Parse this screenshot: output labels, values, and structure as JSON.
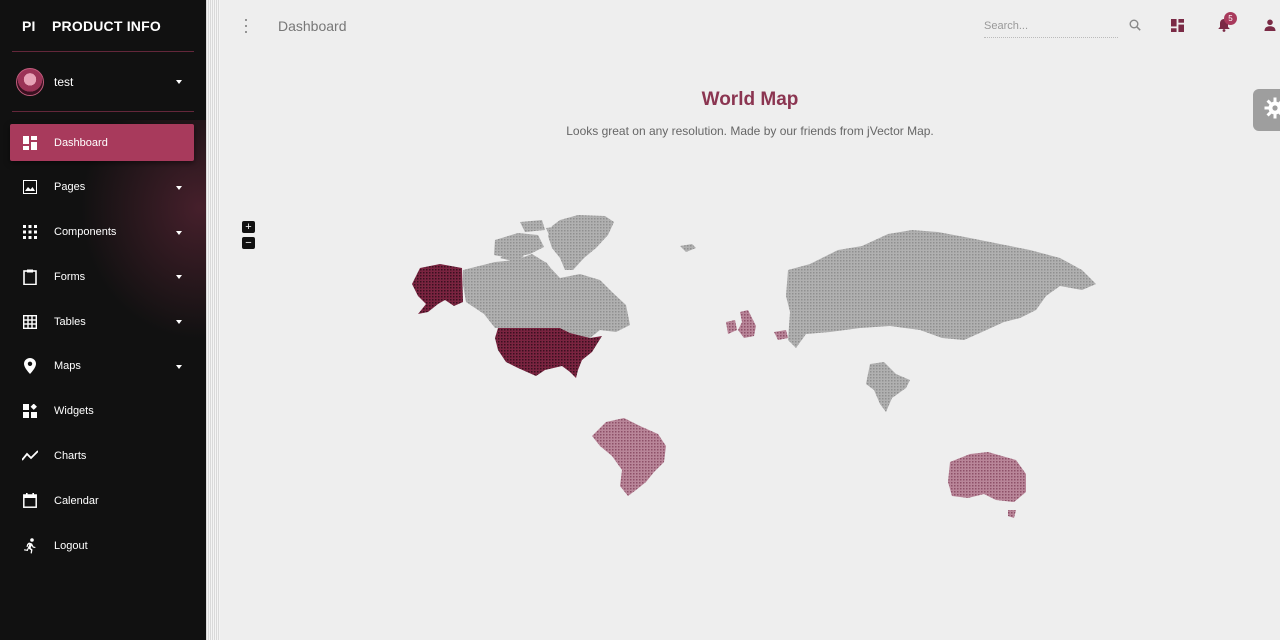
{
  "brand": {
    "mini": "PI",
    "name": "PRODUCT INFO"
  },
  "user": {
    "name": "test"
  },
  "sidebar": {
    "items": [
      {
        "label": "Dashboard",
        "icon": "dashboard-icon",
        "active": true
      },
      {
        "label": "Pages",
        "icon": "image-icon",
        "has_caret": true
      },
      {
        "label": "Components",
        "icon": "apps-grid-icon",
        "has_caret": true
      },
      {
        "label": "Forms",
        "icon": "clipboard-icon",
        "has_caret": true
      },
      {
        "label": "Tables",
        "icon": "grid-table-icon",
        "has_caret": true
      },
      {
        "label": "Maps",
        "icon": "place-pin-icon",
        "has_caret": true
      },
      {
        "label": "Widgets",
        "icon": "widgets-icon"
      },
      {
        "label": "Charts",
        "icon": "timeline-icon"
      },
      {
        "label": "Calendar",
        "icon": "calendar-icon"
      },
      {
        "label": "Logout",
        "icon": "running-person-icon"
      }
    ]
  },
  "topbar": {
    "breadcrumb": "Dashboard",
    "search_placeholder": "Search...",
    "notification_count": "5",
    "icons": [
      "more-vert-icon",
      "search-icon",
      "dashboard-icon",
      "notifications-icon",
      "person-icon"
    ]
  },
  "main": {
    "title": "World Map",
    "subtitle": "Looks great on any resolution. Made by our friends from jVector Map.",
    "zoom_in": "+",
    "zoom_out": "−",
    "settings_icon": "gear-icon"
  },
  "colors": {
    "accent": "#a83a5c",
    "accent_dark": "#6d1e38",
    "accent_light": "#b57a8e",
    "map_gray": "#a6a6a6",
    "sidebar_bg": "#111111",
    "page_bg": "#eeeeee"
  },
  "map": {
    "highlighted_regions": [
      {
        "name": "United States",
        "level": "high"
      },
      {
        "name": "Alaska",
        "level": "high"
      },
      {
        "name": "Brazil",
        "level": "medium"
      },
      {
        "name": "Australia",
        "level": "medium"
      },
      {
        "name": "United Kingdom",
        "level": "medium"
      },
      {
        "name": "Ireland",
        "level": "medium"
      }
    ],
    "gray_regions": [
      "Canada",
      "Greenland",
      "Russia",
      "India",
      "Iceland"
    ]
  }
}
